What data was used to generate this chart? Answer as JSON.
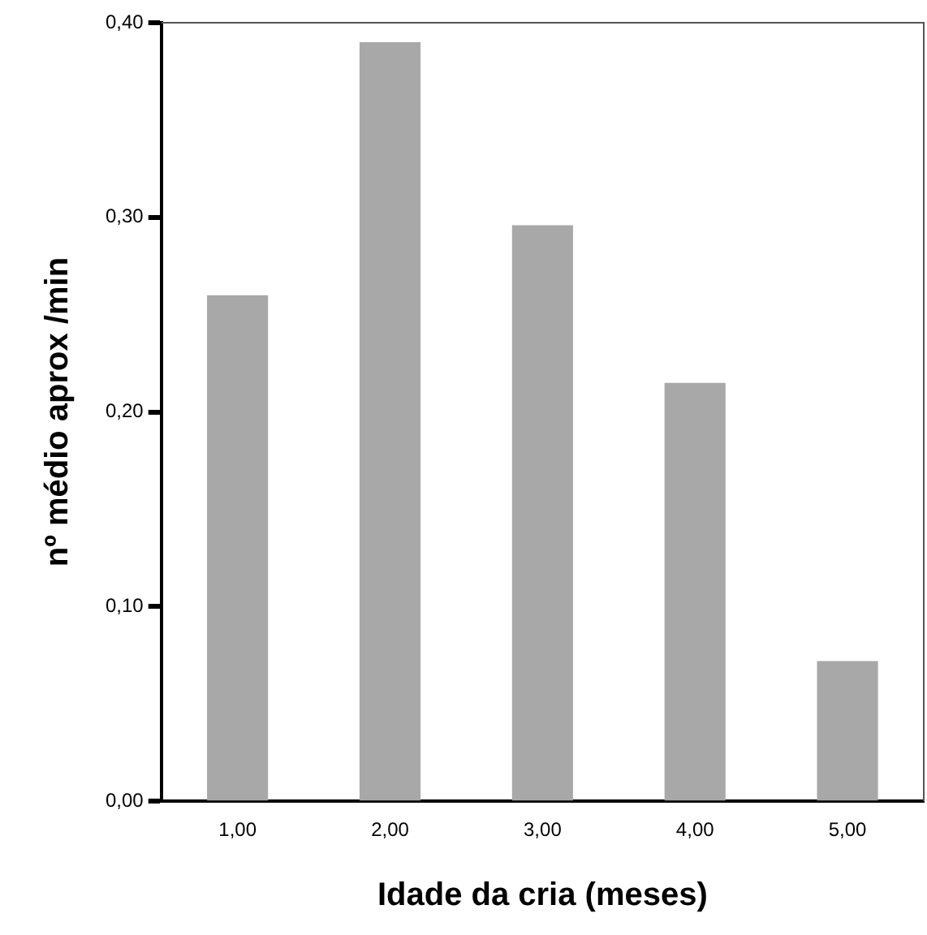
{
  "chart_data": {
    "type": "bar",
    "xlabel": "Idade da cria (meses)",
    "ylabel": "nº médio aprox /min",
    "categories": [
      "1,00",
      "2,00",
      "3,00",
      "4,00",
      "5,00"
    ],
    "values": [
      0.26,
      0.39,
      0.296,
      0.215,
      0.072
    ],
    "color": "#a8a8a8",
    "ylim": [
      0,
      0.4
    ],
    "yticks": [
      {
        "value": 0,
        "label": "0,00"
      },
      {
        "value": 0.1,
        "label": "0,10"
      },
      {
        "value": 0.2,
        "label": "0,20"
      },
      {
        "value": 0.3,
        "label": "0,30"
      },
      {
        "value": 0.4,
        "label": "0,40"
      }
    ],
    "grid": false,
    "legend": false
  }
}
